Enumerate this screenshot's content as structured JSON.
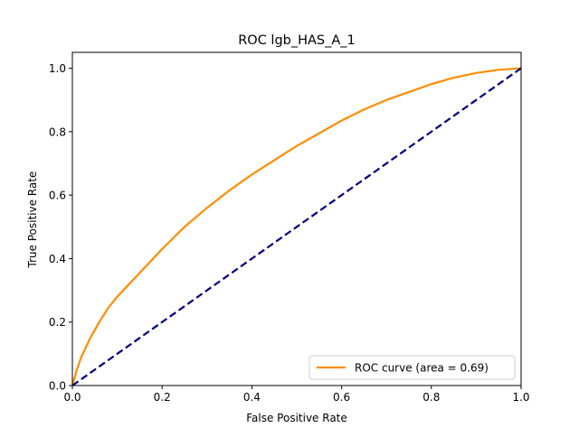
{
  "chart_data": {
    "type": "line",
    "title": "ROC lgb_HAS_A_1",
    "xlabel": "False Positive Rate",
    "ylabel": "True Positive Rate",
    "xlim": [
      0.0,
      1.0
    ],
    "ylim": [
      0.0,
      1.05
    ],
    "xticks": [
      0.0,
      0.2,
      0.4,
      0.6,
      0.8,
      1.0
    ],
    "yticks": [
      0.0,
      0.2,
      0.4,
      0.6,
      0.8,
      1.0
    ],
    "xtick_labels": [
      "0.0",
      "0.2",
      "0.4",
      "0.6",
      "0.8",
      "1.0"
    ],
    "ytick_labels": [
      "0.0",
      "0.2",
      "0.4",
      "0.6",
      "0.8",
      "1.0"
    ],
    "grid": false,
    "legend_position": "lower-right",
    "series": [
      {
        "name": "ROC curve (area = 0.69)",
        "color": "#ff8c00",
        "style": "solid",
        "x": [
          0.0,
          0.01,
          0.02,
          0.04,
          0.06,
          0.08,
          0.1,
          0.12,
          0.15,
          0.2,
          0.25,
          0.3,
          0.35,
          0.4,
          0.45,
          0.5,
          0.55,
          0.6,
          0.65,
          0.7,
          0.75,
          0.8,
          0.85,
          0.9,
          0.95,
          1.0
        ],
        "y": [
          0.0,
          0.05,
          0.09,
          0.15,
          0.2,
          0.245,
          0.28,
          0.31,
          0.355,
          0.43,
          0.5,
          0.56,
          0.615,
          0.665,
          0.71,
          0.755,
          0.795,
          0.835,
          0.87,
          0.9,
          0.925,
          0.95,
          0.97,
          0.985,
          0.995,
          1.0
        ]
      },
      {
        "color": "#000080",
        "style": "dashed",
        "x": [
          0.0,
          1.0
        ],
        "y": [
          0.0,
          1.0
        ]
      }
    ]
  }
}
